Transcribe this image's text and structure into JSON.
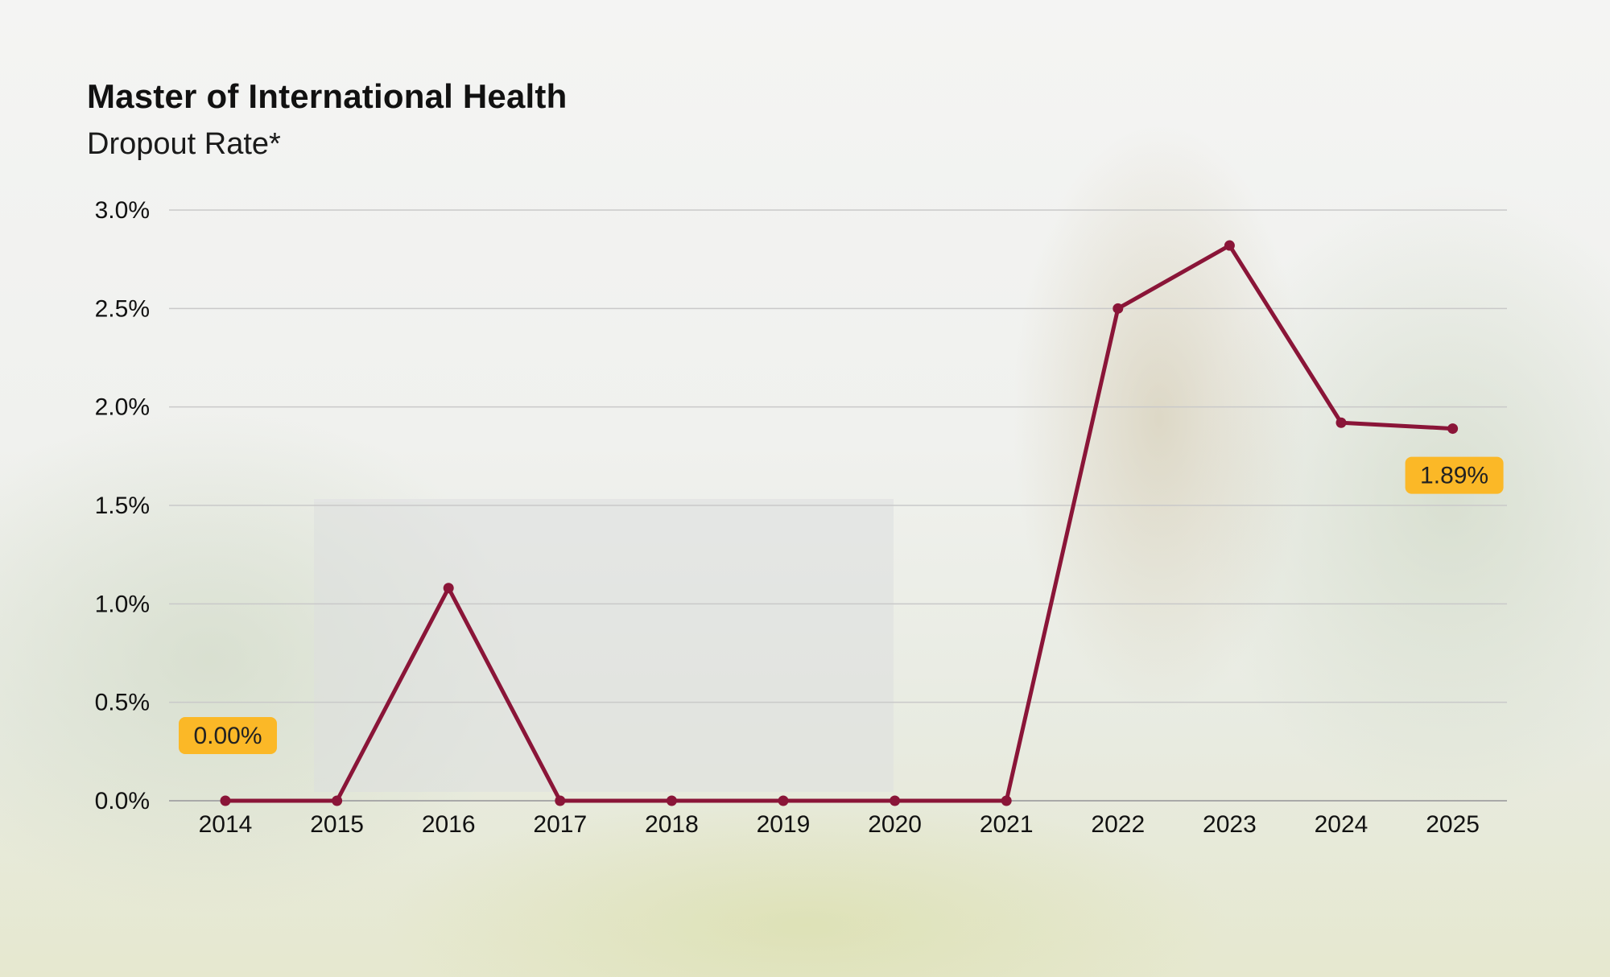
{
  "title": "Master of International Health",
  "subtitle": "Dropout Rate*",
  "colors": {
    "line": "#8a1538",
    "grid": "#c9c9c9",
    "badge": "#fbb827"
  },
  "chart_data": {
    "type": "line",
    "title": "Master of International Health",
    "subtitle": "Dropout Rate*",
    "xlabel": "",
    "ylabel": "",
    "categories": [
      "2014",
      "2015",
      "2016",
      "2017",
      "2018",
      "2019",
      "2020",
      "2021",
      "2022",
      "2023",
      "2024",
      "2025"
    ],
    "series": [
      {
        "values": [
          0.0,
          0.0,
          1.08,
          0.0,
          0.0,
          0.0,
          0.0,
          0.0,
          2.5,
          2.82,
          1.92,
          1.89
        ]
      }
    ],
    "ylim": [
      0,
      3.0
    ],
    "yticks": [
      "0.0%",
      "0.5%",
      "1.0%",
      "1.5%",
      "2.0%",
      "2.5%",
      "3.0%"
    ],
    "grid": true,
    "annotations": [
      {
        "category": "2014",
        "label": "0.00%"
      },
      {
        "category": "2025",
        "label": "1.89%"
      }
    ]
  }
}
